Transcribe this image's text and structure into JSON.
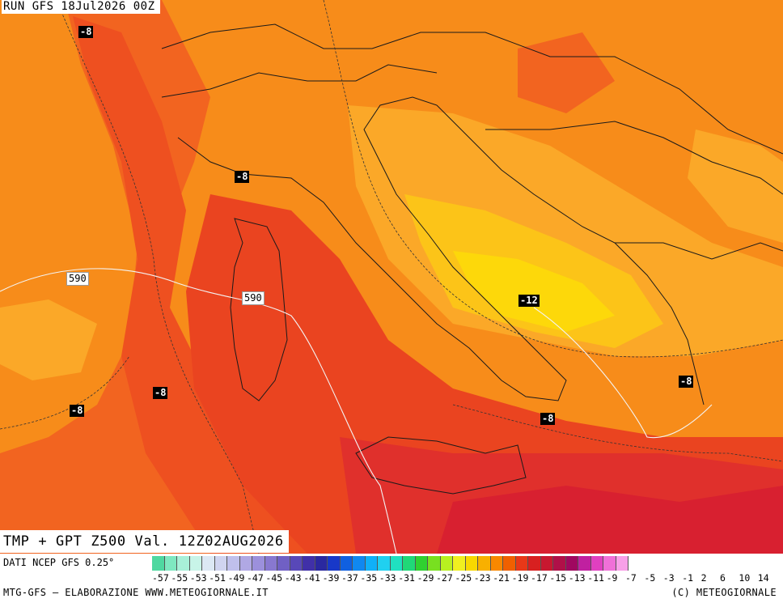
{
  "header": {
    "run": "RUN GFS 18Jul2026 00Z"
  },
  "title": "TMP + GPT Z500 Val. 12Z02AUG2026",
  "source": "DATI NCEP GFS 0.25°",
  "footer": {
    "left": "MTG-GFS — ELABORAZIONE WWW.METEOGIORNALE.IT",
    "right": "(C) METEOGIORNALE"
  },
  "contour_labels": [
    "-8",
    "-8",
    "590",
    "590",
    "-12",
    "-8",
    "-8",
    "-8",
    "-8"
  ],
  "colorbar": {
    "ticks": [
      "-57",
      "-55",
      "-53",
      "-51",
      "-49",
      "-47",
      "-45",
      "-43",
      "-41",
      "-39",
      "-37",
      "-35",
      "-33",
      "-31",
      "-29",
      "-27",
      "-25",
      "-23",
      "-21",
      "-19",
      "-17",
      "-15",
      "-13",
      "-11",
      "-9",
      "-7",
      "-5",
      "-3",
      "-1",
      "2",
      "6",
      "10",
      "14"
    ],
    "colors": [
      "#4fd8a0",
      "#7fe8c0",
      "#a8f0d8",
      "#c8f4e8",
      "#dce8f4",
      "#d0d4f0",
      "#c0c0ec",
      "#b0a8e4",
      "#9c90dc",
      "#8878d0",
      "#7060c4",
      "#5848b8",
      "#4030a8",
      "#2a28a0",
      "#1838c8",
      "#1060e0",
      "#1088f0",
      "#10b0f8",
      "#20d0f0",
      "#20e0c0",
      "#20d878",
      "#30d030",
      "#78e020",
      "#b8f020",
      "#f0f020",
      "#f8d800",
      "#f8b000",
      "#f88800",
      "#f06000",
      "#e83818",
      "#d82020",
      "#c81830",
      "#b01048",
      "#a00860",
      "#c020a0",
      "#e040c0",
      "#f070d8",
      "#f8a0e8"
    ]
  }
}
